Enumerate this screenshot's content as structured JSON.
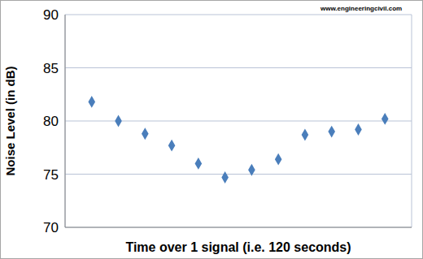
{
  "chart_data": {
    "type": "scatter",
    "watermark": "www.engineeringcivil.com",
    "x_label": "Time over 1 signal (i.e. 120 seconds)",
    "y_label": "Noise Level (in dB)",
    "x": [
      1,
      2,
      3,
      4,
      5,
      6,
      7,
      8,
      9,
      10,
      11,
      12
    ],
    "values": [
      81.8,
      80.0,
      78.8,
      77.7,
      76.0,
      74.7,
      75.4,
      76.4,
      78.7,
      79.0,
      79.2,
      80.2
    ],
    "color": "#4a7ebb",
    "marker": "diamond",
    "xlim": [
      0,
      13
    ],
    "xticks": [
      0,
      1,
      2,
      3,
      4,
      5,
      6,
      7,
      8,
      9,
      10,
      11,
      12,
      13
    ],
    "ylim": [
      70,
      90
    ],
    "yticks": [
      70,
      75,
      80,
      85,
      90
    ],
    "grid": true,
    "tick_labels": "y"
  }
}
